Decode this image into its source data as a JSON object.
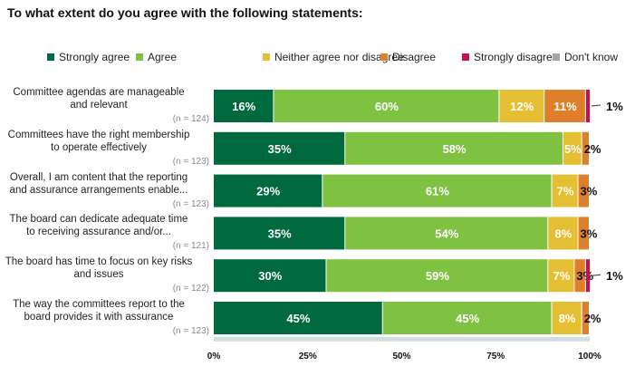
{
  "chart_data": {
    "type": "bar",
    "orientation": "horizontal",
    "stacked": true,
    "title": "To what extent do you agree with the following statements:",
    "legend_position": "top",
    "series": [
      {
        "name": "Strongly agree",
        "color": "#00693e",
        "values": [
          16,
          35,
          29,
          35,
          30,
          45
        ]
      },
      {
        "name": "Agree",
        "color": "#7fc242",
        "values": [
          60,
          58,
          61,
          54,
          59,
          45
        ]
      },
      {
        "name": "Neither agree nor disagree",
        "color": "#e5bf33",
        "values": [
          12,
          5,
          7,
          8,
          7,
          8
        ]
      },
      {
        "name": "Disagree",
        "color": "#de7f2b",
        "values": [
          11,
          2,
          3,
          3,
          3,
          2
        ]
      },
      {
        "name": "Strongly disagree",
        "color": "#c8104b",
        "values": [
          1,
          0,
          0,
          0,
          1,
          0
        ]
      },
      {
        "name": "Don't know",
        "color": "#a6a6a6",
        "values": [
          0,
          0,
          0,
          0,
          0,
          0
        ]
      }
    ],
    "categories": [
      {
        "lines": [
          "Committee agendas are manageable",
          "and relevant"
        ],
        "n": "(n = 124)"
      },
      {
        "lines": [
          "Committees have the right membership",
          "to operate effectively"
        ],
        "n": "(n = 123)"
      },
      {
        "lines": [
          "Overall, I am content that the reporting",
          "and assurance arrangements enable..."
        ],
        "n": "(n = 123)"
      },
      {
        "lines": [
          "The board can dedicate adequate time",
          "to receiving assurance and/or..."
        ],
        "n": "(n = 121)"
      },
      {
        "lines": [
          "The board has time to focus on key risks",
          "and issues"
        ],
        "n": "(n = 122)"
      },
      {
        "lines": [
          "The way the committees report to the",
          "board provides it with assurance"
        ],
        "n": "(n = 123)"
      }
    ],
    "xlim": [
      0,
      100
    ],
    "xticks": [
      "0%",
      "25%",
      "50%",
      "75%",
      "100%"
    ],
    "value_suffix": "%"
  }
}
